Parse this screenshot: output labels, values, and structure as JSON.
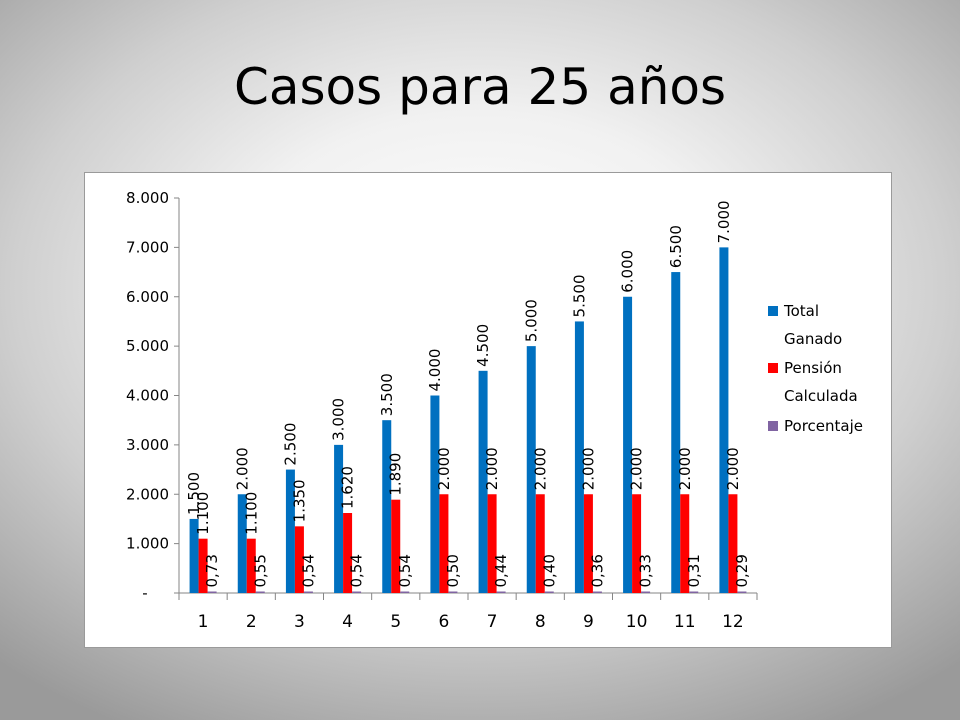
{
  "slide": {
    "title": "Casos para 25 años"
  },
  "chart_data": {
    "type": "bar",
    "categories": [
      "1",
      "2",
      "3",
      "4",
      "5",
      "6",
      "7",
      "8",
      "9",
      "10",
      "11",
      "12"
    ],
    "series": [
      {
        "name": "Total Ganado",
        "color": "#0070c0",
        "values": [
          1500,
          2000,
          2500,
          3000,
          3500,
          4000,
          4500,
          5000,
          5500,
          6000,
          6500,
          7000
        ],
        "labels": [
          "1.500",
          "2.000",
          "2.500",
          "3.000",
          "3.500",
          "4.000",
          "4.500",
          "5.000",
          "5.500",
          "6.000",
          "6.500",
          "7.000"
        ]
      },
      {
        "name": "Pensión Calculada",
        "color": "#ff0000",
        "values": [
          1100,
          1100,
          1350,
          1620,
          1890,
          2000,
          2000,
          2000,
          2000,
          2000,
          2000,
          2000
        ],
        "labels": [
          "1.100",
          "1.100",
          "1.350",
          "1.620",
          "1.890",
          "2.000",
          "2.000",
          "2.000",
          "2.000",
          "2.000",
          "2.000",
          "2.000"
        ]
      },
      {
        "name": "Porcentaje",
        "color": "#8064a2",
        "values": [
          0.73,
          0.55,
          0.54,
          0.54,
          0.54,
          0.5,
          0.44,
          0.4,
          0.36,
          0.33,
          0.31,
          0.29
        ],
        "labels": [
          "0,73",
          "0,55",
          "0,54",
          "0,54",
          "0,54",
          "0,50",
          "0,44",
          "0,40",
          "0,36",
          "0,33",
          "0,31",
          "0,29"
        ]
      }
    ],
    "legend": {
      "position": "right",
      "entries": [
        "Total Ganado",
        "Pensión Calculada",
        "Porcentaje"
      ]
    },
    "y_ticks": [
      "-",
      "1.000",
      "2.000",
      "3.000",
      "4.000",
      "5.000",
      "6.000",
      "7.000",
      "8.000"
    ],
    "ylim": [
      0,
      8000
    ],
    "grid": false,
    "title": "",
    "xlabel": "",
    "ylabel": ""
  }
}
